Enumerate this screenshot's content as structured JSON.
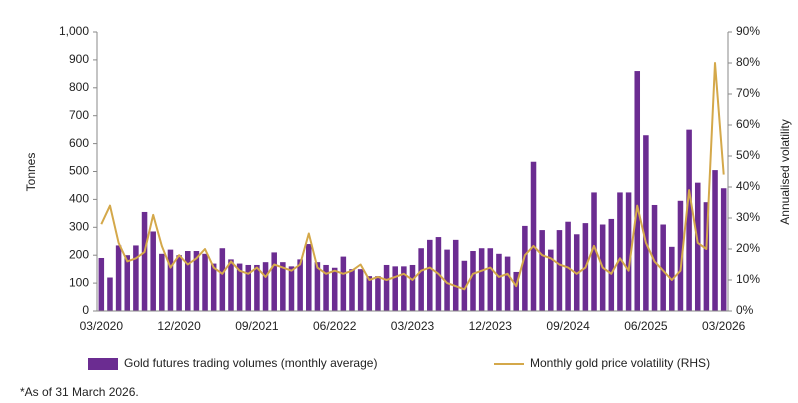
{
  "chart_data": {
    "type": "bar",
    "y_label": "Tonnes",
    "y2_label": "Annualised volatility",
    "footnote": "*As of 31 March 2026.",
    "categories": [
      "03/2020",
      null,
      null,
      null,
      null,
      null,
      null,
      null,
      null,
      "12/2020",
      null,
      null,
      null,
      null,
      null,
      null,
      null,
      null,
      "09/2021",
      null,
      null,
      null,
      null,
      null,
      null,
      null,
      null,
      "06/2022",
      null,
      null,
      null,
      null,
      null,
      null,
      null,
      null,
      "03/2023",
      null,
      null,
      null,
      null,
      null,
      null,
      null,
      null,
      "12/2023",
      null,
      null,
      null,
      null,
      null,
      null,
      null,
      null,
      "09/2024",
      null,
      null,
      null,
      null,
      null,
      null,
      null,
      null,
      "06/2025",
      null,
      null,
      null,
      null,
      null,
      null,
      null,
      null,
      "03/2026"
    ],
    "series": [
      {
        "name": "Gold futures trading volumes (monthly average)",
        "type": "bar",
        "axis": "y",
        "color": "#6b2c91",
        "values": [
          190,
          120,
          235,
          200,
          235,
          355,
          285,
          205,
          220,
          200,
          215,
          215,
          205,
          170,
          225,
          185,
          170,
          165,
          165,
          175,
          210,
          175,
          160,
          185,
          240,
          175,
          165,
          155,
          195,
          150,
          150,
          125,
          125,
          165,
          160,
          160,
          165,
          225,
          255,
          265,
          220,
          255,
          180,
          215,
          225,
          225,
          205,
          195,
          140,
          305,
          535,
          290,
          220,
          290,
          320,
          275,
          315,
          425,
          310,
          330,
          425,
          425,
          860,
          630,
          380,
          310,
          230,
          395,
          650,
          460,
          390,
          505,
          440
        ]
      },
      {
        "name": "Monthly gold price volatility (RHS)",
        "type": "line",
        "axis": "y2",
        "color": "#d4a84a",
        "values": [
          28,
          34,
          22,
          16,
          17,
          19,
          31,
          21,
          14,
          18,
          15,
          17,
          20,
          14,
          12,
          16,
          13,
          12,
          14,
          11,
          15,
          14,
          13,
          15,
          25,
          14,
          12,
          13,
          12,
          13,
          15,
          10,
          11,
          10,
          11,
          12,
          10,
          13,
          14,
          12,
          9,
          8,
          7,
          12,
          13,
          14,
          11,
          12,
          8,
          18,
          21,
          18,
          17,
          15,
          14,
          12,
          14,
          21,
          14,
          12,
          17,
          13,
          34,
          22,
          16,
          13,
          10,
          13,
          39,
          22,
          20,
          80,
          44
        ]
      }
    ],
    "ylim": [
      0,
      1000
    ],
    "yticks": [
      0,
      100,
      200,
      300,
      400,
      500,
      600,
      700,
      800,
      900,
      {
        "value": 1000,
        "label": "1,000"
      }
    ],
    "y2lim": [
      0,
      90
    ],
    "y2ticks": [
      {
        "value": 0,
        "label": "0%"
      },
      {
        "value": 10,
        "label": "10%"
      },
      {
        "value": 20,
        "label": "20%"
      },
      {
        "value": 30,
        "label": "30%"
      },
      {
        "value": 40,
        "label": "40%"
      },
      {
        "value": 50,
        "label": "50%"
      },
      {
        "value": 60,
        "label": "60%"
      },
      {
        "value": 70,
        "label": "70%"
      },
      {
        "value": 80,
        "label": "80%"
      },
      {
        "value": 90,
        "label": "90%"
      }
    ],
    "legend": "bottom"
  }
}
